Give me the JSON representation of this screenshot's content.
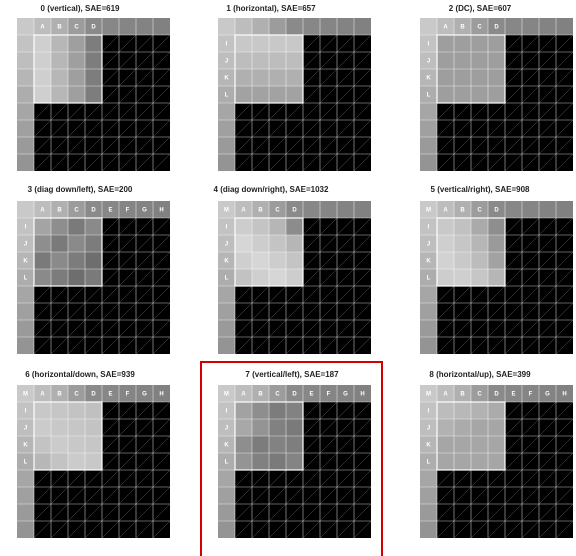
{
  "panels": [
    {
      "title": "0 (vertical), SAE=619",
      "corner_label": "",
      "top_labels": [
        "A",
        "B",
        "C",
        "D"
      ],
      "left_labels": [],
      "top_cell_labels_all": false
    },
    {
      "title": "1 (horizontal), SAE=657",
      "corner_label": "",
      "top_labels": [],
      "left_labels": [
        "I",
        "J",
        "K",
        "L"
      ],
      "top_cell_labels_all": false
    },
    {
      "title": "2 (DC), SAE=607",
      "corner_label": "",
      "top_labels": [
        "A",
        "B",
        "C",
        "D"
      ],
      "left_labels": [
        "I",
        "J",
        "K",
        "L"
      ],
      "top_cell_labels_all": false
    },
    {
      "title": "3 (diag down/left), SAE=200",
      "corner_label": "",
      "top_labels": [
        "A",
        "B",
        "C",
        "D",
        "E",
        "F",
        "G",
        "H"
      ],
      "left_labels": [
        "I",
        "J",
        "K",
        "L"
      ],
      "top_cell_labels_all": true
    },
    {
      "title": "4 (diag down/right), SAE=1032",
      "corner_label": "M",
      "top_labels": [
        "A",
        "B",
        "C",
        "D"
      ],
      "left_labels": [
        "I",
        "J",
        "K",
        "L"
      ],
      "top_cell_labels_all": false
    },
    {
      "title": "5 (vertical/right), SAE=908",
      "corner_label": "M",
      "top_labels": [
        "A",
        "B",
        "C",
        "D"
      ],
      "left_labels": [
        "I",
        "J",
        "K",
        "L"
      ],
      "top_cell_labels_all": false
    },
    {
      "title": "6 (horizontal/down, SAE=939",
      "corner_label": "M",
      "top_labels": [
        "A",
        "B",
        "C",
        "D",
        "E",
        "F",
        "G",
        "H"
      ],
      "left_labels": [
        "I",
        "J",
        "K",
        "L"
      ],
      "top_cell_labels_all": true
    },
    {
      "title": "7 (vertical/left), SAE=187",
      "corner_label": "M",
      "top_labels": [
        "A",
        "B",
        "C",
        "D",
        "E",
        "F",
        "G",
        "H"
      ],
      "left_labels": [
        "I",
        "J",
        "K",
        "L"
      ],
      "top_cell_labels_all": true
    },
    {
      "title": "8 (horizontal/up), SAE=399",
      "corner_label": "M",
      "top_labels": [
        "A",
        "B",
        "C",
        "D",
        "E",
        "F",
        "G",
        "H"
      ],
      "left_labels": [
        "I",
        "J",
        "K",
        "L"
      ],
      "top_cell_labels_all": true
    }
  ],
  "highlighted_panel": 7,
  "colors": {
    "highlight_border": "#d40000",
    "block_outline": "#ffffff",
    "predicted_area_background": "#000000"
  }
}
